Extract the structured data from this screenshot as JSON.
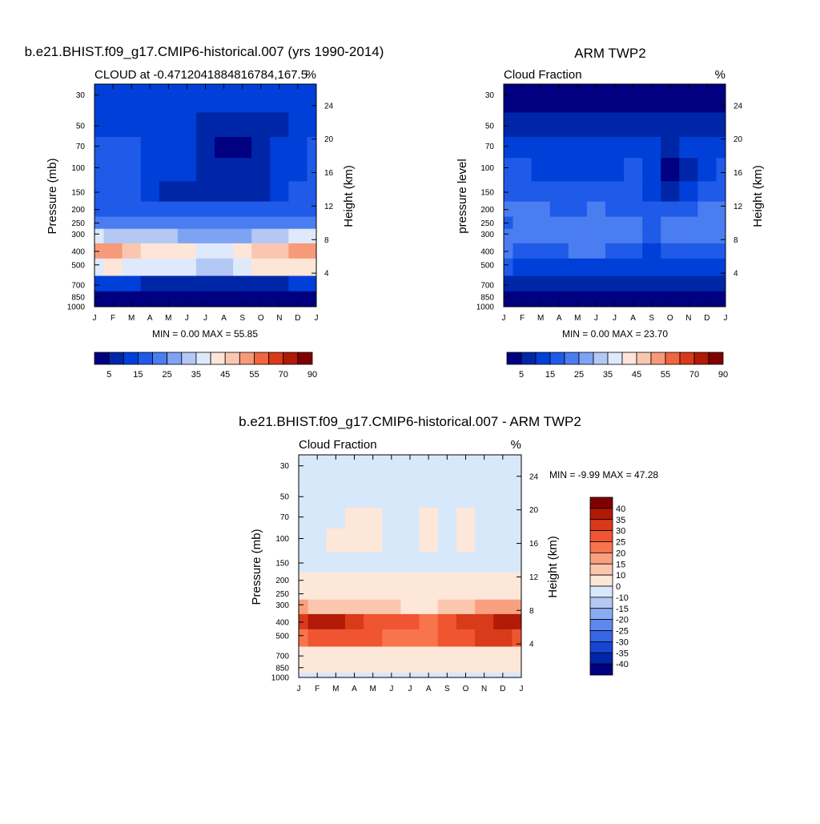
{
  "figure": {
    "panel_a": {
      "title": "b.e21.BHIST.f09_g17.CMIP6-historical.007 (yrs 1990-2014)",
      "left_label": "CLOUD at -0.4712041884816784,167.5",
      "right_label": "%",
      "ylabel": "Pressure (mb)",
      "y2label": "Height (km)",
      "stats": "MIN =   0.00 MAX =  55.85"
    },
    "panel_b": {
      "title": "ARM TWP2",
      "left_label": "Cloud Fraction",
      "right_label": "%",
      "ylabel": "pressure level",
      "y2label": "Height (km)",
      "stats": "MIN =   0.00 MAX =  23.70"
    },
    "panel_c": {
      "title": "b.e21.BHIST.f09_g17.CMIP6-historical.007 - ARM TWP2",
      "left_label": "Cloud Fraction",
      "right_label": "%",
      "ylabel": "Pressure (mb)",
      "y2label": "Height (km)",
      "stats": "MIN =  -9.99 MAX =  47.28"
    }
  },
  "chart_data": [
    {
      "type": "heatmap",
      "id": "model",
      "title": "b.e21.BHIST.f09_g17.CMIP6-historical.007 (yrs 1990-2014)",
      "subtitle": "CLOUD at -0.4712041884816784,167.5",
      "units": "%",
      "xlabel": "",
      "ylabel": "Pressure (mb)",
      "y2label": "Height (km)",
      "x_ticks": [
        "J",
        "F",
        "M",
        "A",
        "M",
        "J",
        "J",
        "A",
        "S",
        "O",
        "N",
        "D",
        "J"
      ],
      "y_ticks": [
        30,
        50,
        70,
        100,
        150,
        200,
        250,
        300,
        400,
        500,
        700,
        850,
        1000
      ],
      "y2_ticks": [
        24,
        20,
        16,
        12,
        8,
        4
      ],
      "ylim": [
        1000,
        25
      ],
      "levels": [
        [
          1000,
          0
        ],
        [
          850,
          0
        ],
        [
          700,
          0
        ],
        [
          500,
          0
        ],
        [
          400,
          0
        ],
        [
          300,
          0
        ],
        [
          250,
          0
        ],
        [
          200,
          0
        ],
        [
          150,
          0
        ],
        [
          100,
          0
        ],
        [
          70,
          0
        ],
        [
          50,
          0
        ],
        [
          30,
          0
        ]
      ],
      "columns": [
        "Jan",
        "Feb",
        "Mar",
        "Apr",
        "May",
        "Jun",
        "Jul",
        "Aug",
        "Sep",
        "Oct",
        "Nov",
        "Dec",
        "Jan"
      ],
      "values": [
        [
          12,
          12,
          12,
          12,
          12,
          12,
          12,
          12,
          12,
          12,
          12,
          12,
          12
        ],
        [
          14,
          13,
          13,
          13,
          13,
          12,
          8,
          6,
          6,
          7,
          9,
          13,
          14
        ],
        [
          15,
          15,
          15,
          14,
          13,
          10,
          7,
          4,
          3,
          5,
          10,
          14,
          15
        ],
        [
          15,
          15,
          15,
          14,
          12,
          10,
          8,
          6,
          5,
          7,
          10,
          14,
          15
        ],
        [
          15,
          15,
          15,
          12,
          9,
          8,
          7,
          6,
          6,
          8,
          11,
          15,
          15
        ],
        [
          17,
          17,
          17,
          17,
          17,
          17,
          17,
          17,
          17,
          17,
          17,
          17,
          17
        ],
        [
          22,
          21,
          22,
          22,
          21,
          22,
          22,
          21,
          22,
          22,
          21,
          22,
          22
        ],
        [
          35,
          34,
          33,
          31,
          30,
          27,
          26,
          25,
          28,
          32,
          34,
          35,
          36
        ],
        [
          52,
          54,
          49,
          43,
          44,
          44,
          38,
          35,
          42,
          45,
          47,
          50,
          53
        ],
        [
          38,
          42,
          39,
          38,
          38,
          35,
          33,
          34,
          38,
          40,
          42,
          41,
          40
        ],
        [
          12,
          14,
          10,
          8,
          7,
          6,
          7,
          6,
          7,
          7,
          8,
          10,
          11
        ],
        [
          2,
          2,
          2,
          2,
          2,
          2,
          2,
          2,
          2,
          2,
          2,
          2,
          2
        ],
        [
          1,
          1,
          1,
          1,
          1,
          1,
          1,
          1,
          1,
          1,
          1,
          1,
          1
        ]
      ],
      "colorbar": {
        "labels": [
          "5",
          "15",
          "25",
          "35",
          "45",
          "55",
          "70",
          "90"
        ],
        "colors": [
          "#000080",
          "#0026a8",
          "#0040d9",
          "#1f5ae8",
          "#4a7df0",
          "#7fa3f3",
          "#b4c8f5",
          "#dfe9fc",
          "#fde6d8",
          "#fbc6b0",
          "#f79a79",
          "#ef6641",
          "#d93a1a",
          "#b01a06",
          "#800000"
        ]
      },
      "stats": "MIN =   0.00 MAX =  55.85"
    },
    {
      "type": "heatmap",
      "id": "obs",
      "title": "ARM TWP2",
      "subtitle": "Cloud Fraction",
      "units": "%",
      "xlabel": "",
      "ylabel": "pressure level",
      "y2label": "Height (km)",
      "x_ticks": [
        "J",
        "F",
        "M",
        "A",
        "M",
        "J",
        "J",
        "A",
        "S",
        "O",
        "N",
        "D",
        "J"
      ],
      "y_ticks": [
        30,
        50,
        70,
        100,
        150,
        200,
        250,
        300,
        400,
        500,
        700,
        850,
        1000
      ],
      "y2_ticks": [
        24,
        20,
        16,
        12,
        8,
        4
      ],
      "ylim": [
        1000,
        25
      ],
      "levels": [
        [
          1000,
          0
        ],
        [
          850,
          0
        ],
        [
          700,
          0
        ],
        [
          500,
          0
        ],
        [
          400,
          0
        ],
        [
          300,
          0
        ],
        [
          250,
          0
        ],
        [
          200,
          0
        ],
        [
          150,
          0
        ],
        [
          100,
          0
        ],
        [
          70,
          0
        ],
        [
          50,
          0
        ],
        [
          30,
          0
        ]
      ],
      "columns": [
        "Jan",
        "Feb",
        "Mar",
        "Apr",
        "May",
        "Jun",
        "Jul",
        "Aug",
        "Sep",
        "Oct",
        "Nov",
        "Dec",
        "Jan"
      ],
      "values": [
        [
          2,
          2,
          2,
          2,
          2,
          2,
          2,
          2,
          2,
          2,
          2,
          2,
          2
        ],
        [
          8,
          7,
          8,
          8,
          7,
          8,
          8,
          7,
          8,
          8,
          7,
          8,
          8
        ],
        [
          14,
          14,
          14,
          13,
          10,
          14,
          12,
          13,
          10,
          6,
          10,
          14,
          14
        ],
        [
          16,
          16,
          14,
          14,
          14,
          14,
          14,
          15,
          10,
          4,
          8,
          14,
          15
        ],
        [
          18,
          18,
          16,
          18,
          17,
          15,
          16,
          17,
          12,
          8,
          13,
          16,
          17
        ],
        [
          20,
          21,
          20,
          18,
          18,
          20,
          18,
          19,
          17,
          18,
          18,
          20,
          20
        ],
        [
          19,
          22,
          21,
          20,
          20,
          22,
          22,
          21,
          19,
          20,
          20,
          21,
          20
        ],
        [
          20,
          23,
          21,
          20,
          22,
          21,
          21,
          20,
          18,
          21,
          22,
          20,
          21
        ],
        [
          20,
          19,
          19,
          18,
          20,
          20,
          19,
          16,
          14,
          16,
          18,
          18,
          19
        ],
        [
          15,
          13,
          12,
          11,
          11,
          11,
          11,
          10,
          10,
          11,
          12,
          13,
          14
        ],
        [
          5,
          5,
          5,
          5,
          5,
          5,
          5,
          5,
          5,
          5,
          5,
          5,
          5
        ],
        [
          3,
          3,
          3,
          3,
          3,
          3,
          3,
          3,
          3,
          3,
          3,
          3,
          3
        ],
        [
          2,
          2,
          2,
          2,
          2,
          2,
          2,
          2,
          2,
          2,
          2,
          2,
          2
        ]
      ],
      "colorbar": {
        "labels": [
          "5",
          "15",
          "25",
          "35",
          "45",
          "55",
          "70",
          "90"
        ],
        "colors": [
          "#000080",
          "#0026a8",
          "#0040d9",
          "#1f5ae8",
          "#4a7df0",
          "#7fa3f3",
          "#b4c8f5",
          "#dfe9fc",
          "#fde6d8",
          "#fbc6b0",
          "#f79a79",
          "#ef6641",
          "#d93a1a",
          "#b01a06",
          "#800000"
        ]
      },
      "stats": "MIN =   0.00 MAX =  23.70"
    },
    {
      "type": "heatmap",
      "id": "diff",
      "title": "b.e21.BHIST.f09_g17.CMIP6-historical.007 - ARM TWP2",
      "subtitle": "Cloud Fraction",
      "units": "%",
      "xlabel": "",
      "ylabel": "Pressure (mb)",
      "y2label": "Height (km)",
      "x_ticks": [
        "J",
        "F",
        "M",
        "A",
        "M",
        "J",
        "J",
        "A",
        "S",
        "O",
        "N",
        "D",
        "J"
      ],
      "y_ticks": [
        30,
        50,
        70,
        100,
        150,
        200,
        250,
        300,
        400,
        500,
        700,
        850,
        1000
      ],
      "y2_ticks": [
        24,
        20,
        16,
        12,
        8,
        4
      ],
      "ylim": [
        1000,
        25
      ],
      "levels": [
        [
          1000,
          0
        ],
        [
          850,
          0
        ],
        [
          700,
          0
        ],
        [
          500,
          0
        ],
        [
          400,
          0
        ],
        [
          300,
          0
        ],
        [
          250,
          0
        ],
        [
          200,
          0
        ],
        [
          150,
          0
        ],
        [
          100,
          0
        ],
        [
          70,
          0
        ],
        [
          50,
          0
        ],
        [
          30,
          0
        ]
      ],
      "columns": [
        "Jan",
        "Feb",
        "Mar",
        "Apr",
        "May",
        "Jun",
        "Jul",
        "Aug",
        "Sep",
        "Oct",
        "Nov",
        "Dec",
        "Jan"
      ],
      "values": [
        [
          -1,
          -1,
          -1,
          -1,
          -1,
          -1,
          -1,
          -1,
          -1,
          -1,
          -1,
          -1,
          -1
        ],
        [
          -1,
          -1,
          -1,
          -1,
          -1,
          -1,
          -1,
          -1,
          -1,
          -1,
          -1,
          -1,
          -1
        ],
        [
          -2,
          -2,
          -2,
          2,
          2,
          -2,
          -2,
          2,
          -2,
          2,
          -2,
          -2,
          -2
        ],
        [
          -3,
          -3,
          2,
          3,
          2,
          -3,
          -4,
          2,
          -3,
          3,
          -2,
          -3,
          -3
        ],
        [
          -2,
          -3,
          -3,
          -3,
          -3,
          -3,
          -3,
          -3,
          -3,
          -3,
          -3,
          -3,
          -2
        ],
        [
          2,
          2,
          2,
          3,
          3,
          2,
          3,
          2,
          3,
          3,
          2,
          2,
          2
        ],
        [
          5,
          5,
          5,
          7,
          6,
          5,
          5,
          6,
          5,
          6,
          6,
          5,
          5
        ],
        [
          16,
          14,
          13,
          12,
          10,
          10,
          9,
          9,
          11,
          14,
          15,
          16,
          17
        ],
        [
          32,
          38,
          35,
          30,
          28,
          28,
          25,
          24,
          29,
          32,
          33,
          36,
          38
        ],
        [
          24,
          28,
          27,
          28,
          29,
          24,
          22,
          23,
          26,
          28,
          30,
          30,
          29
        ],
        [
          7,
          8,
          6,
          5,
          4,
          4,
          4,
          4,
          4,
          4,
          5,
          6,
          7
        ],
        [
          4,
          4,
          4,
          4,
          4,
          4,
          4,
          4,
          4,
          4,
          4,
          4,
          4
        ],
        [
          -1,
          -1,
          -1,
          -1,
          -1,
          -1,
          -1,
          -1,
          -1,
          -1,
          -1,
          -1,
          -1
        ]
      ],
      "colorbar": {
        "labels": [
          "40",
          "35",
          "30",
          "25",
          "20",
          "15",
          "10",
          "0",
          "-10",
          "-15",
          "-20",
          "-25",
          "-30",
          "-35",
          "-40"
        ],
        "colors": [
          "#800000",
          "#b01a06",
          "#d93a1a",
          "#ef5530",
          "#f7744d",
          "#f9a080",
          "#fbc6ae",
          "#fde7d9",
          "#d8e8fb",
          "#b4c8f5",
          "#8aabf2",
          "#5f88ef",
          "#3766e6",
          "#1744d2",
          "#0026a8",
          "#000080"
        ]
      },
      "stats": "MIN =  -9.99 MAX =  47.28"
    }
  ]
}
